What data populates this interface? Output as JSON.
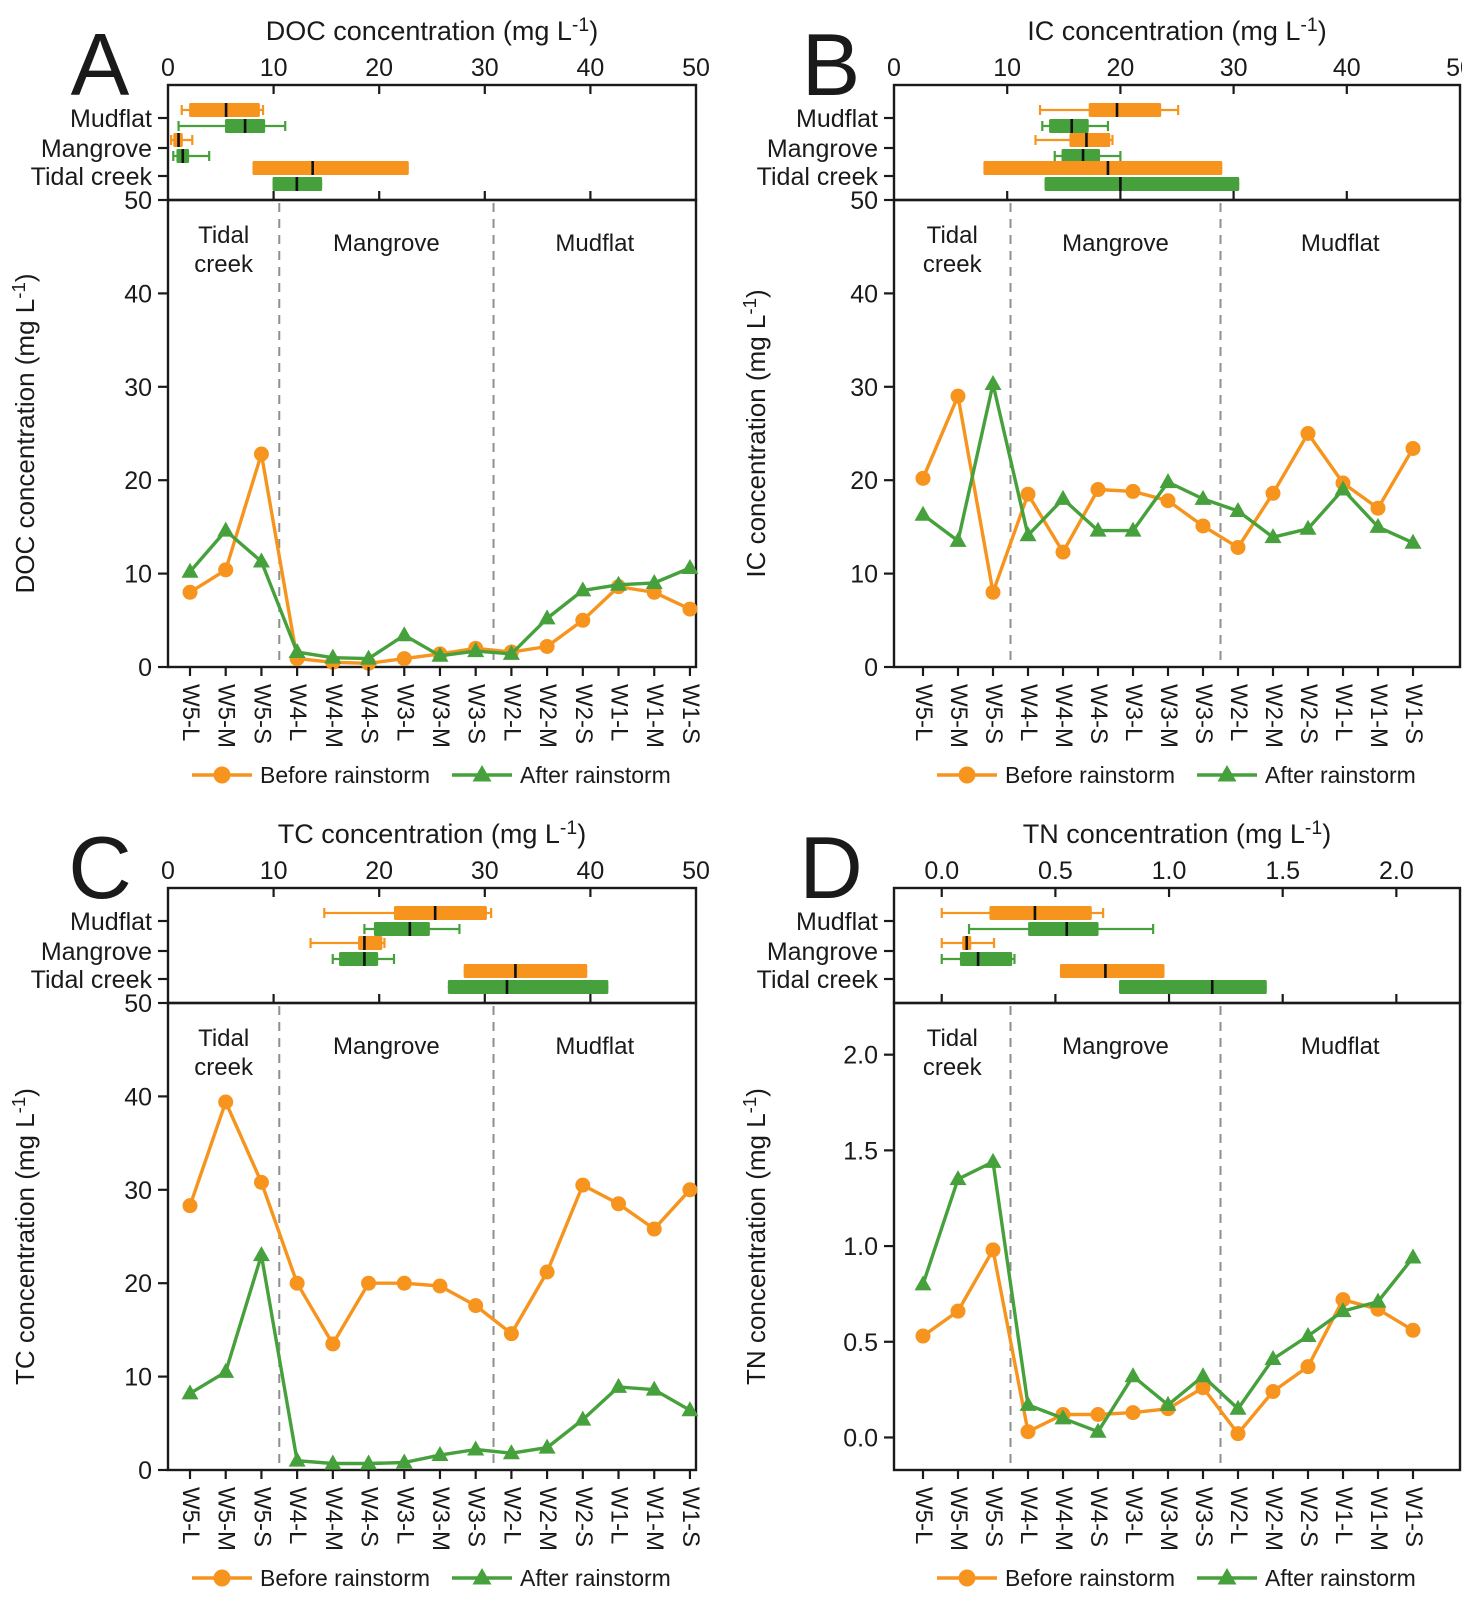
{
  "shared": {
    "categories": [
      "W5-L",
      "W5-M",
      "W5-S",
      "W4-L",
      "W4-M",
      "W4-S",
      "W3-L",
      "W3-M",
      "W3-S",
      "W2-L",
      "W2-M",
      "W2-S",
      "W1-L",
      "W1-M",
      "W1-S"
    ],
    "legend": [
      {
        "label": "Before rainstorm",
        "marker": "circle",
        "color": "#F6941E"
      },
      {
        "label": "After rainstorm",
        "marker": "triangle",
        "color": "#46A13C"
      }
    ],
    "zones": [
      [
        "Tidal",
        "creek"
      ],
      [
        "Mangrove"
      ],
      [
        "Mudflat"
      ]
    ],
    "zone_dividers_between_categories": [
      2.5,
      8.5
    ],
    "boxplot_rows": [
      "Mudflat",
      "Mangrove",
      "Tidal creek"
    ],
    "colors": {
      "before": "#F6941E",
      "after": "#46A13C",
      "divider": "#8F8F8F",
      "axis": "#1a1a1a",
      "median": "#111111"
    }
  },
  "chart_data": [
    {
      "letter": "A",
      "type": "line+boxplot",
      "title_parts": {
        "prefix": "DOC concentration (mg L",
        "sup": "-1",
        "suffix": ")"
      },
      "y_label_parts": {
        "prefix": "DOC concentration (mg L",
        "sup": "-1",
        "suffix": ")"
      },
      "x_axis": {
        "tick_labels": [
          "0",
          "10",
          "20",
          "30",
          "40",
          "50"
        ],
        "tick_values": [
          0,
          10,
          20,
          30,
          40,
          50
        ],
        "range": [
          0,
          50
        ]
      },
      "y_axis": {
        "tick_labels": [
          "0",
          "10",
          "20",
          "30",
          "40",
          "50"
        ],
        "tick_values": [
          0,
          10,
          20,
          30,
          40,
          50
        ],
        "range": [
          0,
          50
        ]
      },
      "boxplots": [
        {
          "row": "Mudflat",
          "before": {
            "lo": 1.3,
            "q1": 2.0,
            "med": 5.5,
            "q3": 8.7,
            "hi": 9.0
          },
          "after": {
            "lo": 1.0,
            "q1": 5.4,
            "med": 7.3,
            "q3": 9.2,
            "hi": 11.1
          }
        },
        {
          "row": "Mangrove",
          "before": {
            "lo": 0.3,
            "q1": 0.5,
            "med": 1.0,
            "q3": 1.4,
            "hi": 2.3
          },
          "after": {
            "lo": 0.5,
            "q1": 0.8,
            "med": 1.4,
            "q3": 2.0,
            "hi": 3.9
          }
        },
        {
          "row": "Tidal creek",
          "before": {
            "lo": 8.0,
            "q1": 8.0,
            "med": 13.7,
            "q3": 22.8,
            "hi": 22.8
          },
          "after": {
            "lo": 9.9,
            "q1": 9.9,
            "med": 12.2,
            "q3": 14.6,
            "hi": 14.6
          }
        }
      ],
      "series": [
        {
          "name": "Before rainstorm",
          "values": [
            8.0,
            10.4,
            22.8,
            0.9,
            0.5,
            0.4,
            0.9,
            1.4,
            2.0,
            1.6,
            2.2,
            5.0,
            8.6,
            8.0,
            6.2
          ]
        },
        {
          "name": "After rainstorm",
          "values": [
            10.2,
            14.6,
            11.3,
            1.6,
            1.0,
            0.9,
            3.4,
            1.2,
            1.7,
            1.4,
            5.2,
            8.2,
            8.8,
            9.0,
            10.6
          ]
        }
      ]
    },
    {
      "letter": "B",
      "type": "line+boxplot",
      "title_parts": {
        "prefix": "IC concentration (mg L",
        "sup": "-1",
        "suffix": ")"
      },
      "y_label_parts": {
        "prefix": "IC concentration (mg L",
        "sup": "-1",
        "suffix": ")"
      },
      "x_axis": {
        "tick_labels": [
          "0",
          "10",
          "20",
          "30",
          "40",
          "50"
        ],
        "tick_values": [
          0,
          10,
          20,
          30,
          40,
          50
        ],
        "range": [
          0,
          50
        ]
      },
      "y_axis": {
        "tick_labels": [
          "0",
          "10",
          "20",
          "30",
          "40",
          "50"
        ],
        "tick_values": [
          0,
          10,
          20,
          30,
          40,
          50
        ],
        "range": [
          0,
          50
        ]
      },
      "boxplots": [
        {
          "row": "Mudflat",
          "before": {
            "lo": 12.9,
            "q1": 17.2,
            "med": 19.7,
            "q3": 23.6,
            "hi": 25.1
          },
          "after": {
            "lo": 13.1,
            "q1": 13.7,
            "med": 15.7,
            "q3": 17.2,
            "hi": 18.9
          }
        },
        {
          "row": "Mangrove",
          "before": {
            "lo": 12.5,
            "q1": 15.5,
            "med": 17.0,
            "q3": 19.1,
            "hi": 19.3
          },
          "after": {
            "lo": 14.2,
            "q1": 14.8,
            "med": 16.7,
            "q3": 18.2,
            "hi": 20.0
          }
        },
        {
          "row": "Tidal creek",
          "before": {
            "lo": 7.9,
            "q1": 7.9,
            "med": 18.9,
            "q3": 29.0,
            "hi": 29.0
          },
          "after": {
            "lo": 13.3,
            "q1": 13.3,
            "med": 20.0,
            "q3": 30.5,
            "hi": 30.5
          }
        }
      ],
      "series": [
        {
          "name": "Before rainstorm",
          "values": [
            20.2,
            29.0,
            8.0,
            18.5,
            12.3,
            19.0,
            18.8,
            17.8,
            15.1,
            12.8,
            18.6,
            25.0,
            19.7,
            17.0,
            23.4
          ]
        },
        {
          "name": "After rainstorm",
          "values": [
            16.3,
            13.5,
            30.3,
            14.1,
            18.0,
            14.6,
            14.6,
            19.8,
            18.0,
            16.7,
            13.9,
            14.8,
            19.0,
            15.0,
            13.3
          ]
        }
      ]
    },
    {
      "letter": "C",
      "type": "line+boxplot",
      "title_parts": {
        "prefix": "TC concentration (mg L",
        "sup": "-1",
        "suffix": ")"
      },
      "y_label_parts": {
        "prefix": "TC concentration (mg L",
        "sup": "-1",
        "suffix": ")"
      },
      "x_axis": {
        "tick_labels": [
          "0",
          "10",
          "20",
          "30",
          "40",
          "50"
        ],
        "tick_values": [
          0,
          10,
          20,
          30,
          40,
          50
        ],
        "range": [
          0,
          50
        ]
      },
      "y_axis": {
        "tick_labels": [
          "0",
          "10",
          "20",
          "30",
          "40",
          "50"
        ],
        "tick_values": [
          0,
          10,
          20,
          30,
          40,
          50
        ],
        "range": [
          0,
          50
        ]
      },
      "boxplots": [
        {
          "row": "Mudflat",
          "before": {
            "lo": 14.8,
            "q1": 21.4,
            "med": 25.3,
            "q3": 30.2,
            "hi": 30.6
          },
          "after": {
            "lo": 18.6,
            "q1": 19.5,
            "med": 22.9,
            "q3": 24.8,
            "hi": 27.6
          }
        },
        {
          "row": "Mangrove",
          "before": {
            "lo": 13.5,
            "q1": 18.0,
            "med": 18.6,
            "q3": 20.3,
            "hi": 20.5
          },
          "after": {
            "lo": 15.6,
            "q1": 16.2,
            "med": 18.6,
            "q3": 19.9,
            "hi": 21.4
          }
        },
        {
          "row": "Tidal creek",
          "before": {
            "lo": 28.0,
            "q1": 28.0,
            "med": 32.9,
            "q3": 39.7,
            "hi": 39.7
          },
          "after": {
            "lo": 26.5,
            "q1": 26.5,
            "med": 32.1,
            "q3": 41.7,
            "hi": 41.7
          }
        }
      ],
      "series": [
        {
          "name": "Before rainstorm",
          "values": [
            28.3,
            39.4,
            30.8,
            20.0,
            13.5,
            20.0,
            20.0,
            19.7,
            17.6,
            14.6,
            21.2,
            30.5,
            28.5,
            25.8,
            30.0
          ]
        },
        {
          "name": "After rainstorm",
          "values": [
            8.2,
            10.5,
            23.0,
            1.0,
            0.7,
            0.7,
            0.8,
            1.6,
            2.2,
            1.8,
            2.4,
            5.4,
            8.9,
            8.6,
            6.4
          ]
        }
      ]
    },
    {
      "letter": "D",
      "type": "line+boxplot",
      "title_parts": {
        "prefix": "TN concentration (mg L",
        "sup": "-1",
        "suffix": ")"
      },
      "y_label_parts": {
        "prefix": "TN concentration (mg L",
        "sup": "-1",
        "suffix": ")"
      },
      "x_axis": {
        "tick_labels": [
          "0.0",
          "0.5",
          "1.0",
          "1.5",
          "2.0"
        ],
        "tick_values": [
          0,
          0.5,
          1.0,
          1.5,
          2.0
        ],
        "range": [
          -0.21,
          2.28
        ]
      },
      "y_axis": {
        "tick_labels": [
          "0.0",
          "0.5",
          "1.0",
          "1.5",
          "2.0"
        ],
        "tick_values": [
          0,
          0.5,
          1.0,
          1.5,
          2.0
        ],
        "range": [
          -0.17,
          2.27
        ]
      },
      "boxplots": [
        {
          "row": "Mudflat",
          "before": {
            "lo": 0.0,
            "q1": 0.21,
            "med": 0.41,
            "q3": 0.66,
            "hi": 0.71
          },
          "after": {
            "lo": 0.12,
            "q1": 0.38,
            "med": 0.55,
            "q3": 0.69,
            "hi": 0.93
          }
        },
        {
          "row": "Mangrove",
          "before": {
            "lo": 0.0,
            "q1": 0.09,
            "med": 0.11,
            "q3": 0.13,
            "hi": 0.23
          },
          "after": {
            "lo": 0.0,
            "q1": 0.08,
            "med": 0.16,
            "q3": 0.31,
            "hi": 0.32
          }
        },
        {
          "row": "Tidal creek",
          "before": {
            "lo": 0.52,
            "q1": 0.52,
            "med": 0.72,
            "q3": 0.98,
            "hi": 0.98
          },
          "after": {
            "lo": 0.78,
            "q1": 0.78,
            "med": 1.19,
            "q3": 1.43,
            "hi": 1.43
          }
        }
      ],
      "series": [
        {
          "name": "Before rainstorm",
          "values": [
            0.53,
            0.66,
            0.98,
            0.03,
            0.12,
            0.12,
            0.13,
            0.15,
            0.26,
            0.02,
            0.24,
            0.37,
            0.72,
            0.67,
            0.56
          ]
        },
        {
          "name": "After rainstorm",
          "values": [
            0.8,
            1.35,
            1.44,
            0.17,
            0.1,
            0.03,
            0.32,
            0.17,
            0.32,
            0.15,
            0.41,
            0.53,
            0.66,
            0.71,
            0.94
          ]
        }
      ]
    }
  ]
}
